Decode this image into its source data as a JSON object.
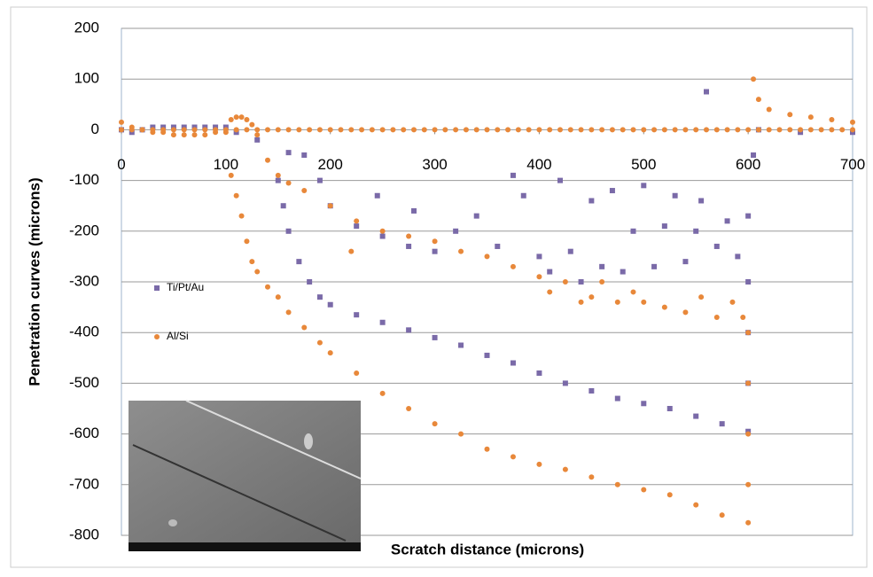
{
  "chart_data": {
    "type": "scatter",
    "xlabel": "Scratch distance (microns)",
    "ylabel": "Penetration curves (microns)",
    "xlim": [
      0,
      700
    ],
    "xticks": [
      0,
      100,
      200,
      300,
      400,
      500,
      600,
      700
    ],
    "ylim": [
      -800,
      200
    ],
    "yticks": [
      -800,
      -700,
      -600,
      -500,
      -400,
      -300,
      -200,
      -100,
      0,
      100,
      200
    ],
    "grid": true,
    "legend": "left",
    "series": [
      {
        "name": "Ti/Pt/Au",
        "color": "#7a6aa8",
        "marker": "square",
        "x": [
          0,
          10,
          20,
          30,
          40,
          50,
          60,
          70,
          80,
          90,
          100,
          110,
          130,
          150,
          155,
          160,
          170,
          180,
          190,
          200,
          225,
          250,
          275,
          300,
          325,
          350,
          375,
          400,
          425,
          450,
          475,
          500,
          525,
          550,
          575,
          600,
          600,
          600,
          600,
          160,
          175,
          190,
          200,
          225,
          250,
          245,
          275,
          280,
          300,
          320,
          340,
          360,
          375,
          385,
          400,
          410,
          420,
          430,
          440,
          450,
          460,
          470,
          480,
          490,
          500,
          510,
          520,
          530,
          540,
          550,
          555,
          560,
          570,
          580,
          590,
          600,
          605,
          610,
          650,
          700
        ],
        "values": [
          0,
          -5,
          0,
          5,
          5,
          5,
          5,
          5,
          5,
          5,
          5,
          -5,
          -20,
          -100,
          -150,
          -200,
          -260,
          -300,
          -330,
          -345,
          -365,
          -380,
          -395,
          -410,
          -425,
          -445,
          -460,
          -480,
          -500,
          -515,
          -530,
          -540,
          -550,
          -565,
          -580,
          -595,
          -500,
          -400,
          -300,
          -45,
          -50,
          -100,
          -150,
          -190,
          -210,
          -130,
          -230,
          -160,
          -240,
          -200,
          -170,
          -230,
          -90,
          -130,
          -250,
          -280,
          -100,
          -240,
          -300,
          -140,
          -270,
          -120,
          -280,
          -200,
          -110,
          -270,
          -190,
          -130,
          -260,
          -200,
          -140,
          75,
          -230,
          -180,
          -250,
          -170,
          -50,
          0,
          -5,
          -5
        ]
      },
      {
        "name": "Al/Si",
        "color": "#e8883a",
        "marker": "circle",
        "x": [
          0,
          10,
          20,
          30,
          40,
          50,
          60,
          70,
          80,
          90,
          100,
          110,
          120,
          130,
          140,
          150,
          160,
          170,
          180,
          190,
          200,
          210,
          220,
          230,
          240,
          250,
          260,
          270,
          280,
          290,
          300,
          310,
          320,
          330,
          340,
          350,
          360,
          370,
          380,
          390,
          400,
          410,
          420,
          430,
          440,
          450,
          460,
          470,
          480,
          490,
          500,
          510,
          520,
          530,
          540,
          550,
          560,
          570,
          580,
          590,
          600,
          610,
          620,
          630,
          640,
          650,
          660,
          670,
          680,
          690,
          700,
          0,
          10,
          20,
          30,
          40,
          50,
          60,
          70,
          80,
          90,
          100,
          105,
          110,
          115,
          120,
          125,
          105,
          110,
          115,
          120,
          125,
          130,
          140,
          150,
          160,
          175,
          190,
          200,
          225,
          250,
          275,
          300,
          325,
          350,
          375,
          400,
          425,
          450,
          475,
          500,
          525,
          550,
          575,
          600,
          600,
          600,
          600,
          600,
          130,
          140,
          150,
          160,
          175,
          200,
          225,
          250,
          275,
          300,
          325,
          350,
          375,
          400,
          410,
          425,
          440,
          450,
          460,
          475,
          490,
          500,
          520,
          540,
          555,
          570,
          585,
          595,
          605,
          610,
          620,
          640,
          660,
          680,
          700,
          220
        ],
        "values": [
          0,
          0,
          0,
          0,
          0,
          0,
          0,
          0,
          0,
          0,
          0,
          0,
          0,
          0,
          0,
          0,
          0,
          0,
          0,
          0,
          0,
          0,
          0,
          0,
          0,
          0,
          0,
          0,
          0,
          0,
          0,
          0,
          0,
          0,
          0,
          0,
          0,
          0,
          0,
          0,
          0,
          0,
          0,
          0,
          0,
          0,
          0,
          0,
          0,
          0,
          0,
          0,
          0,
          0,
          0,
          0,
          0,
          0,
          0,
          0,
          0,
          0,
          0,
          0,
          0,
          0,
          0,
          0,
          0,
          0,
          0,
          15,
          5,
          0,
          -5,
          -5,
          -10,
          -10,
          -10,
          -10,
          -5,
          -5,
          20,
          25,
          25,
          20,
          10,
          -90,
          -130,
          -170,
          -220,
          -260,
          -280,
          -310,
          -330,
          -360,
          -390,
          -420,
          -440,
          -480,
          -520,
          -550,
          -580,
          -600,
          -630,
          -645,
          -660,
          -670,
          -685,
          -700,
          -710,
          -720,
          -740,
          -760,
          -775,
          -700,
          -600,
          -500,
          -400,
          -10,
          -60,
          -90,
          -105,
          -120,
          -150,
          -180,
          -200,
          -210,
          -220,
          -240,
          -250,
          -270,
          -290,
          -320,
          -300,
          -340,
          -330,
          -300,
          -340,
          -320,
          -340,
          -350,
          -360,
          -330,
          -370,
          -340,
          -370,
          100,
          60,
          40,
          30,
          25,
          20,
          15,
          -240
        ]
      }
    ]
  }
}
